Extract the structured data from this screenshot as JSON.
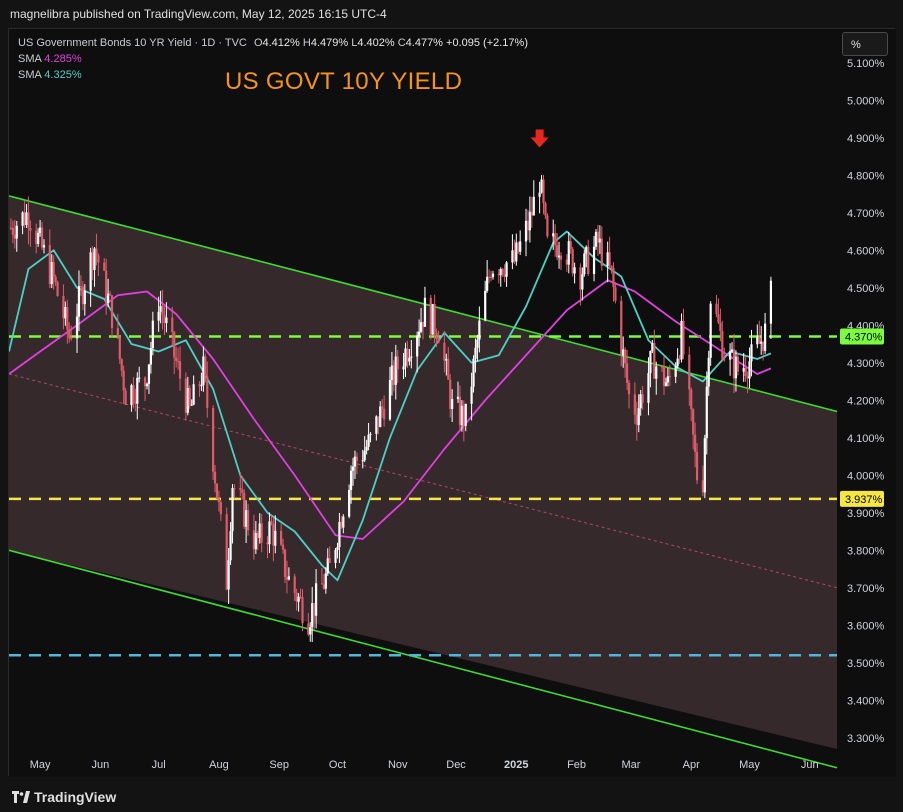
{
  "header": {
    "publisher_text": "magnelibra published on TradingView.com, May 12, 2025 16:15 UTC-4"
  },
  "legend": {
    "symbol": "US Government Bonds 10 YR Yield · 1D · TVC",
    "o_label": "O",
    "o_value": "4.412%",
    "h_label": "H",
    "h_value": "4.479%",
    "l_label": "L",
    "l_value": "4.402%",
    "c_label": "C",
    "c_value": "4.477%",
    "change": "+0.095 (+2.17%)",
    "sma1_label": "SMA",
    "sma1_value": "4.285%",
    "sma1_color": "#e040e0",
    "sma2_label": "SMA",
    "sma2_value": "4.325%",
    "sma2_color": "#4dd0c4"
  },
  "title": "US GOVT 10Y YIELD",
  "title_color": "#f7931a",
  "scale_button": "%",
  "footer": {
    "brand": "TradingView",
    "logo_icon": "tradingview-logo-icon"
  },
  "colors": {
    "candle_up": "#ffffff",
    "candle_down": "#e05a6a",
    "channel_line": "#3ddc2e",
    "channel_fill": "#3a2c30",
    "midline": "#d0506a",
    "level_green": "#7cfc3a",
    "level_yellow": "#f5e642",
    "level_blue": "#4fb7d9"
  },
  "chart_data": {
    "type": "candlestick",
    "y_unit": "%",
    "ylim": [
      3.27,
      5.19
    ],
    "y_ticks": [
      "5.100%",
      "5.000%",
      "4.900%",
      "4.800%",
      "4.700%",
      "4.600%",
      "4.500%",
      "4.400%",
      "4.300%",
      "4.200%",
      "4.100%",
      "4.000%",
      "3.900%",
      "3.800%",
      "3.700%",
      "3.600%",
      "3.500%",
      "3.400%",
      "3.300%"
    ],
    "y_tick_values": [
      5.1,
      5.0,
      4.9,
      4.8,
      4.7,
      4.6,
      4.5,
      4.4,
      4.3,
      4.2,
      4.1,
      4.0,
      3.9,
      3.8,
      3.7,
      3.6,
      3.5,
      3.4,
      3.3
    ],
    "x_ticks": [
      "May",
      "Jun",
      "Jul",
      "Aug",
      "Sep",
      "Oct",
      "Nov",
      "Dec",
      "2025",
      "Feb",
      "Mar",
      "Apr",
      "May",
      "Jun"
    ],
    "x_tick_dates": [
      "2024-05-01",
      "2024-06-01",
      "2024-07-01",
      "2024-08-01",
      "2024-09-01",
      "2024-10-01",
      "2024-11-01",
      "2024-12-01",
      "2025-01-01",
      "2025-02-01",
      "2025-03-01",
      "2025-04-01",
      "2025-05-01",
      "2025-06-01"
    ],
    "x_range": [
      "2024-04-15",
      "2025-06-15"
    ],
    "price_path": [
      [
        "2024-04-16",
        4.66
      ],
      [
        "2024-04-25",
        4.7
      ],
      [
        "2024-05-08",
        4.52
      ],
      [
        "2024-05-16",
        4.37
      ],
      [
        "2024-05-29",
        4.61
      ],
      [
        "2024-06-07",
        4.43
      ],
      [
        "2024-06-14",
        4.22
      ],
      [
        "2024-06-24",
        4.25
      ],
      [
        "2024-07-01",
        4.47
      ],
      [
        "2024-07-10",
        4.3
      ],
      [
        "2024-07-17",
        4.17
      ],
      [
        "2024-07-24",
        4.28
      ],
      [
        "2024-08-05",
        3.72
      ],
      [
        "2024-08-08",
        3.98
      ],
      [
        "2024-08-20",
        3.82
      ],
      [
        "2024-08-28",
        3.86
      ],
      [
        "2024-09-06",
        3.72
      ],
      [
        "2024-09-16",
        3.62
      ],
      [
        "2024-09-27",
        3.75
      ],
      [
        "2024-10-08",
        4.02
      ],
      [
        "2024-10-18",
        4.09
      ],
      [
        "2024-10-31",
        4.28
      ],
      [
        "2024-11-07",
        4.35
      ],
      [
        "2024-11-15",
        4.44
      ],
      [
        "2024-11-22",
        4.39
      ],
      [
        "2024-11-29",
        4.18
      ],
      [
        "2024-12-06",
        4.15
      ],
      [
        "2024-12-13",
        4.39
      ],
      [
        "2024-12-19",
        4.56
      ],
      [
        "2024-12-31",
        4.57
      ],
      [
        "2025-01-08",
        4.68
      ],
      [
        "2025-01-13",
        4.79
      ],
      [
        "2025-01-17",
        4.61
      ],
      [
        "2025-01-24",
        4.62
      ],
      [
        "2025-02-03",
        4.54
      ],
      [
        "2025-02-12",
        4.62
      ],
      [
        "2025-02-19",
        4.53
      ],
      [
        "2025-02-28",
        4.21
      ],
      [
        "2025-03-04",
        4.17
      ],
      [
        "2025-03-12",
        4.31
      ],
      [
        "2025-03-20",
        4.24
      ],
      [
        "2025-03-27",
        4.37
      ],
      [
        "2025-04-04",
        4.0
      ],
      [
        "2025-04-07",
        3.99
      ],
      [
        "2025-04-11",
        4.48
      ],
      [
        "2025-04-18",
        4.33
      ],
      [
        "2025-04-25",
        4.28
      ],
      [
        "2025-05-02",
        4.31
      ],
      [
        "2025-05-09",
        4.38
      ],
      [
        "2025-05-12",
        4.477
      ]
    ],
    "sma_fast": [
      [
        "2024-04-15",
        4.33
      ],
      [
        "2024-04-25",
        4.55
      ],
      [
        "2024-05-08",
        4.6
      ],
      [
        "2024-05-20",
        4.5
      ],
      [
        "2024-06-03",
        4.47
      ],
      [
        "2024-06-17",
        4.35
      ],
      [
        "2024-07-01",
        4.33
      ],
      [
        "2024-07-15",
        4.36
      ],
      [
        "2024-07-29",
        4.23
      ],
      [
        "2024-08-12",
        4.0
      ],
      [
        "2024-08-26",
        3.9
      ],
      [
        "2024-09-09",
        3.85
      ],
      [
        "2024-09-23",
        3.76
      ],
      [
        "2024-10-01",
        3.72
      ],
      [
        "2024-10-14",
        3.88
      ],
      [
        "2024-10-28",
        4.1
      ],
      [
        "2024-11-11",
        4.28
      ],
      [
        "2024-11-25",
        4.38
      ],
      [
        "2024-12-09",
        4.3
      ],
      [
        "2024-12-23",
        4.32
      ],
      [
        "2025-01-06",
        4.45
      ],
      [
        "2025-01-20",
        4.62
      ],
      [
        "2025-01-27",
        4.65
      ],
      [
        "2025-02-10",
        4.58
      ],
      [
        "2025-02-24",
        4.53
      ],
      [
        "2025-03-10",
        4.36
      ],
      [
        "2025-03-24",
        4.29
      ],
      [
        "2025-04-07",
        4.25
      ],
      [
        "2025-04-21",
        4.33
      ],
      [
        "2025-05-05",
        4.31
      ],
      [
        "2025-05-12",
        4.325
      ]
    ],
    "sma_slow": [
      [
        "2024-04-15",
        4.27
      ],
      [
        "2024-05-01",
        4.33
      ],
      [
        "2024-05-20",
        4.4
      ],
      [
        "2024-06-10",
        4.48
      ],
      [
        "2024-06-25",
        4.49
      ],
      [
        "2024-07-10",
        4.43
      ],
      [
        "2024-07-29",
        4.31
      ],
      [
        "2024-08-19",
        4.15
      ],
      [
        "2024-09-09",
        4.0
      ],
      [
        "2024-09-30",
        3.84
      ],
      [
        "2024-10-14",
        3.83
      ],
      [
        "2024-11-04",
        3.93
      ],
      [
        "2024-11-25",
        4.07
      ],
      [
        "2024-12-16",
        4.2
      ],
      [
        "2025-01-06",
        4.32
      ],
      [
        "2025-01-27",
        4.44
      ],
      [
        "2025-02-17",
        4.52
      ],
      [
        "2025-03-03",
        4.49
      ],
      [
        "2025-03-24",
        4.41
      ],
      [
        "2025-04-14",
        4.34
      ],
      [
        "2025-05-05",
        4.27
      ],
      [
        "2025-05-12",
        4.285
      ]
    ],
    "channel_upper": [
      [
        "2024-04-15",
        4.745
      ],
      [
        "2025-06-15",
        4.17
      ]
    ],
    "channel_lower": [
      [
        "2024-04-15",
        3.8
      ],
      [
        "2025-06-15",
        3.22
      ]
    ],
    "channel_mid": [
      [
        "2024-04-15",
        4.27
      ],
      [
        "2025-06-15",
        3.7
      ]
    ],
    "levels": [
      {
        "value": 4.37,
        "label": "4.370%",
        "color": "#7cfc3a",
        "style": "dashed"
      },
      {
        "value": 3.937,
        "label": "3.937%",
        "color": "#f5e642",
        "style": "dashed"
      },
      {
        "value": 3.52,
        "label": "",
        "color": "#4fb7d9",
        "style": "dashed"
      }
    ],
    "annotation": {
      "type": "arrow-down",
      "date": "2025-01-13",
      "value": 4.89,
      "color": "#e8271d"
    },
    "grid": false,
    "legend": "top-left"
  }
}
